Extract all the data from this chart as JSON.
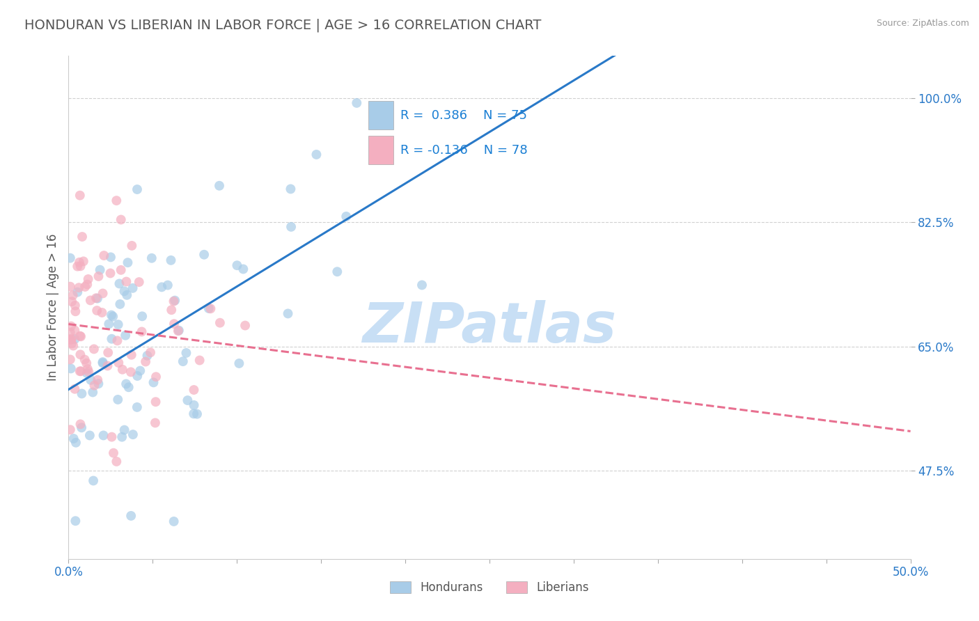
{
  "title": "HONDURAN VS LIBERIAN IN LABOR FORCE | AGE > 16 CORRELATION CHART",
  "source_text": "Source: ZipAtlas.com",
  "ylabel": "In Labor Force | Age > 16",
  "xlim": [
    0.0,
    0.5
  ],
  "ylim": [
    0.35,
    1.06
  ],
  "xticks": [
    0.0,
    0.05,
    0.1,
    0.15,
    0.2,
    0.25,
    0.3,
    0.35,
    0.4,
    0.45,
    0.5
  ],
  "xticklabels_show": [
    "0.0%",
    "",
    "",
    "",
    "",
    "",
    "",
    "",
    "",
    "",
    "50.0%"
  ],
  "yticks": [
    0.475,
    0.65,
    0.825,
    1.0
  ],
  "yticklabels": [
    "47.5%",
    "65.0%",
    "82.5%",
    "100.0%"
  ],
  "honduran_color": "#a8cce8",
  "liberian_color": "#f4afc0",
  "honduran_R": 0.386,
  "honduran_N": 75,
  "liberian_R": -0.136,
  "liberian_N": 78,
  "legend_color": "#1a7fd4",
  "trend_honduran_color": "#2979c8",
  "trend_liberian_color": "#e87090",
  "trend_honduran_style": "solid",
  "trend_liberian_style": "dashed",
  "watermark": "ZIPatlas",
  "watermark_color": "#c8dff5",
  "background_color": "#ffffff",
  "grid_color": "#d0d0d0",
  "title_color": "#555555",
  "title_fontsize": 14,
  "axis_label_color": "#555555",
  "tick_color": "#2979c8",
  "scatter_alpha": 0.7,
  "scatter_size": 100
}
